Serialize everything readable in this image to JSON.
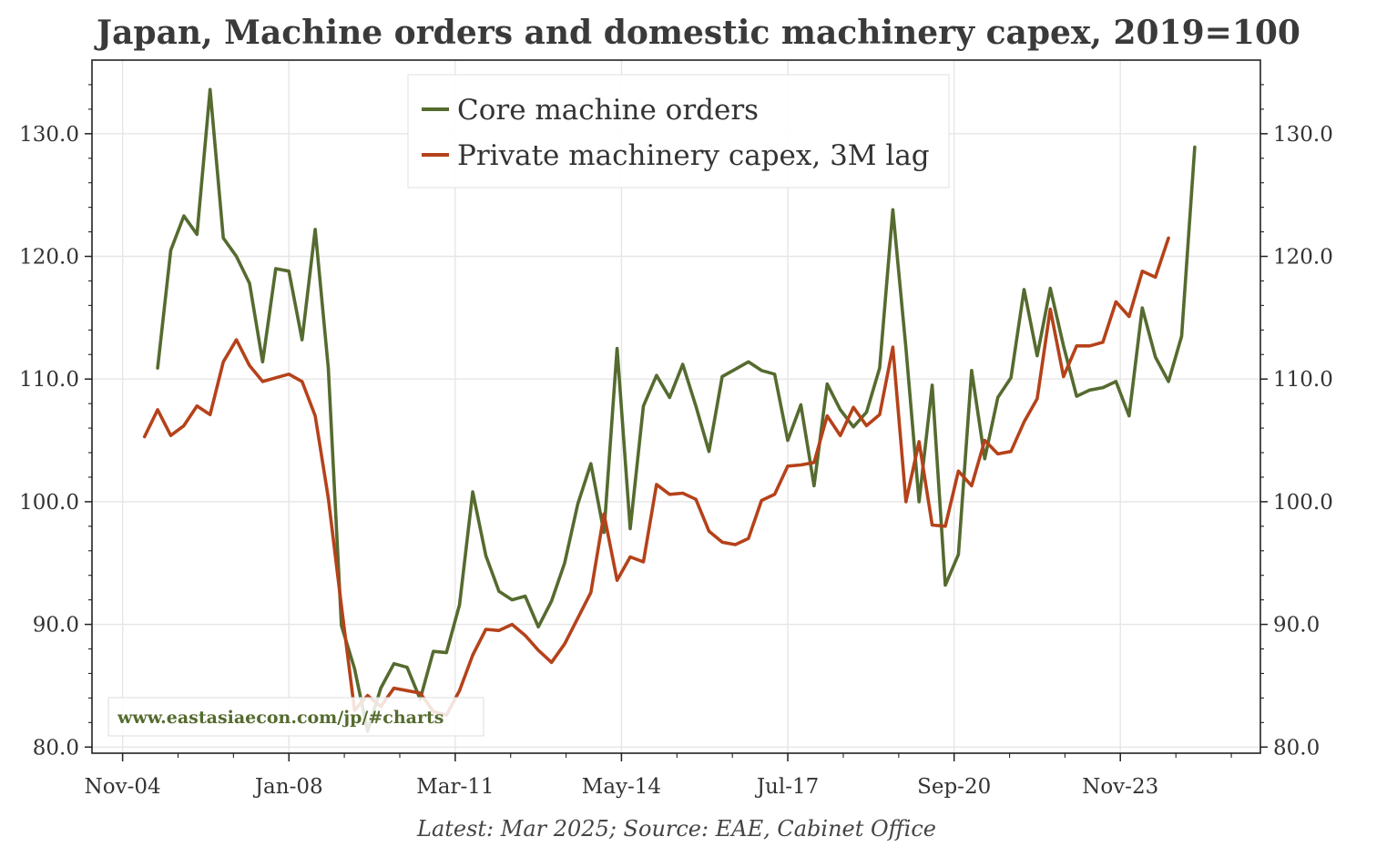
{
  "chart_data": {
    "type": "line",
    "title": "Japan, Machine orders and domestic machinery capex, 2019=100",
    "footer": "Latest: Mar 2025; Source: EAE, Cabinet Office",
    "watermark": "www.eastasiaecon.com/jp/#charts",
    "ylim": [
      79.5,
      136
    ],
    "y_ticks": [
      80,
      90,
      100,
      110,
      120,
      130
    ],
    "y_tick_labels": [
      "80.0",
      "90.0",
      "100.0",
      "110.0",
      "120.0",
      "130.0"
    ],
    "x_ticks": [
      2004.833,
      2008.0,
      2011.167,
      2014.333,
      2017.5,
      2020.667,
      2023.833
    ],
    "x_tick_labels": [
      "Nov-04",
      "Jan-08",
      "Mar-11",
      "May-14",
      "Jul-17",
      "Sep-20",
      "Nov-23"
    ],
    "xlim": [
      2004.25,
      2026.5
    ],
    "grid": true,
    "legend_position": "top-center",
    "series": [
      {
        "name": "Core machine orders",
        "color": "#556b2f",
        "x": [
          2005.5,
          2005.75,
          2006.0,
          2006.25,
          2006.5,
          2006.75,
          2007.0,
          2007.25,
          2007.5,
          2007.75,
          2008.0,
          2008.25,
          2008.5,
          2008.75,
          2009.0,
          2009.25,
          2009.5,
          2009.75,
          2010.0,
          2010.25,
          2010.5,
          2010.75,
          2011.0,
          2011.25,
          2011.5,
          2011.75,
          2012.0,
          2012.25,
          2012.5,
          2012.75,
          2013.0,
          2013.25,
          2013.5,
          2013.75,
          2014.0,
          2014.25,
          2014.5,
          2014.75,
          2015.0,
          2015.25,
          2015.5,
          2015.75,
          2016.0,
          2016.25,
          2016.5,
          2016.75,
          2017.0,
          2017.25,
          2017.5,
          2017.75,
          2018.0,
          2018.25,
          2018.5,
          2018.75,
          2019.0,
          2019.25,
          2019.5,
          2019.75,
          2020.0,
          2020.25,
          2020.5,
          2020.75,
          2021.0,
          2021.25,
          2021.5,
          2021.75,
          2022.0,
          2022.25,
          2022.5,
          2022.75,
          2023.0,
          2023.25,
          2023.5,
          2023.75,
          2024.0,
          2024.25,
          2024.5,
          2024.75,
          2025.0,
          2025.25
        ],
        "values": [
          110.9,
          120.5,
          123.3,
          121.8,
          133.6,
          121.5,
          120.0,
          117.8,
          111.4,
          119.0,
          118.8,
          113.2,
          122.2,
          110.9,
          89.9,
          86.4,
          81.3,
          84.8,
          86.8,
          86.5,
          83.9,
          87.8,
          87.7,
          91.6,
          100.8,
          95.6,
          92.7,
          92.0,
          92.3,
          89.8,
          91.9,
          95.0,
          99.8,
          103.1,
          97.5,
          112.5,
          97.8,
          107.8,
          110.3,
          108.5,
          111.2,
          107.8,
          104.1,
          110.2,
          110.8,
          111.4,
          110.7,
          110.4,
          105.0,
          107.9,
          101.3,
          109.6,
          107.5,
          106.1,
          107.3,
          110.9,
          123.8,
          112.5,
          100.0,
          109.5,
          93.2,
          95.7,
          110.7,
          103.5,
          108.5,
          110.1,
          117.3,
          111.9,
          117.4,
          112.7,
          108.6,
          109.1,
          109.3,
          109.8,
          107.0,
          115.8,
          111.8,
          109.8,
          113.5,
          128.9
        ]
      },
      {
        "name": "Private machinery capex, 3M lag",
        "color": "#b5421a",
        "x": [
          2005.25,
          2005.5,
          2005.75,
          2006.0,
          2006.25,
          2006.5,
          2006.75,
          2007.0,
          2007.25,
          2007.5,
          2007.75,
          2008.0,
          2008.25,
          2008.5,
          2008.75,
          2009.0,
          2009.25,
          2009.5,
          2009.75,
          2010.0,
          2010.25,
          2010.5,
          2010.75,
          2011.0,
          2011.25,
          2011.5,
          2011.75,
          2012.0,
          2012.25,
          2012.5,
          2012.75,
          2013.0,
          2013.25,
          2013.5,
          2013.75,
          2014.0,
          2014.25,
          2014.5,
          2014.75,
          2015.0,
          2015.25,
          2015.5,
          2015.75,
          2016.0,
          2016.25,
          2016.5,
          2016.75,
          2017.0,
          2017.25,
          2017.5,
          2017.75,
          2018.0,
          2018.25,
          2018.5,
          2018.75,
          2019.0,
          2019.25,
          2019.5,
          2019.75,
          2020.0,
          2020.25,
          2020.5,
          2020.75,
          2021.0,
          2021.25,
          2021.5,
          2021.75,
          2022.0,
          2022.25,
          2022.5,
          2022.75,
          2023.0,
          2023.25,
          2023.5,
          2023.75,
          2024.0,
          2024.25,
          2024.5,
          2024.75
        ],
        "values": [
          105.3,
          107.5,
          105.4,
          106.2,
          107.8,
          107.1,
          111.4,
          113.2,
          111.1,
          109.8,
          110.1,
          110.4,
          109.8,
          107.0,
          100.3,
          91.5,
          83.0,
          84.2,
          83.3,
          84.8,
          84.6,
          84.4,
          82.9,
          82.6,
          84.6,
          87.5,
          89.6,
          89.5,
          90.0,
          89.1,
          87.9,
          86.9,
          88.4,
          90.5,
          92.6,
          99.0,
          93.6,
          95.5,
          95.1,
          101.4,
          100.6,
          100.7,
          100.2,
          97.6,
          96.7,
          96.5,
          97.0,
          100.1,
          100.6,
          102.9,
          103.0,
          103.2,
          107.0,
          105.4,
          107.7,
          106.2,
          107.1,
          112.6,
          100.0,
          104.9,
          98.1,
          98.0,
          102.5,
          101.3,
          105.0,
          103.9,
          104.1,
          106.5,
          108.4,
          115.7,
          110.2,
          112.7,
          112.7,
          113.0,
          116.3,
          115.1,
          118.8,
          118.3,
          121.5
        ]
      }
    ]
  }
}
